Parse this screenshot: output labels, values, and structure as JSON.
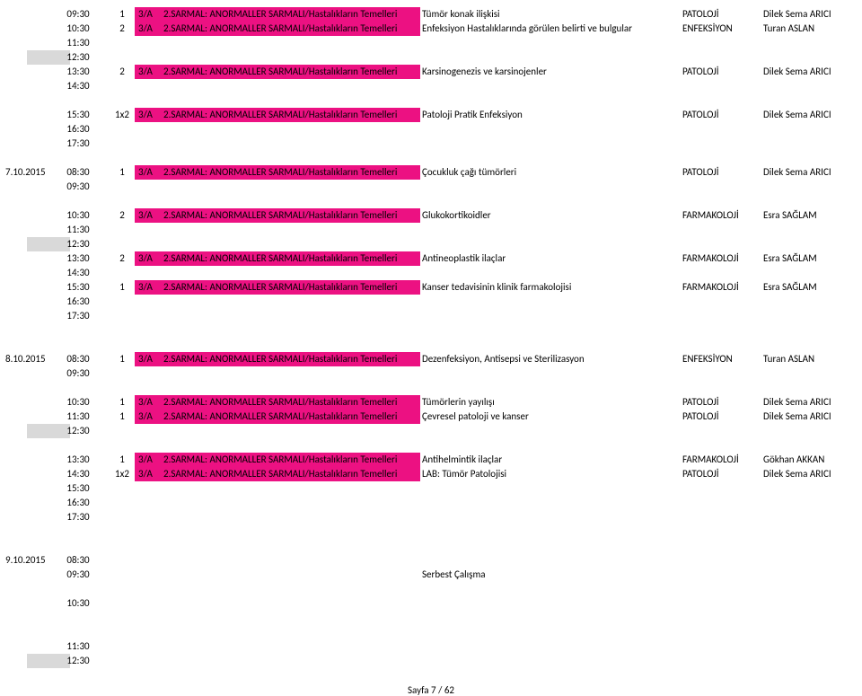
{
  "colors": {
    "pink": "#ec1182",
    "grey": "#d9d9d9",
    "text": "#000000",
    "background": "#ffffff"
  },
  "footer": "Sayfa 7 / 62",
  "rows": [
    {
      "time": "09:30",
      "count": "1",
      "code": "3/A",
      "course": "2.SARMAL: ANORMALLER SARMALI/Hastalıkların Temelleri",
      "topic": "Tümör konak ilişkisi",
      "dept": "PATOLOJİ",
      "inst": "Dilek Sema ARICI",
      "hl": "pink"
    },
    {
      "time": "10:30",
      "count": "2",
      "code": "3/A",
      "course": "2.SARMAL: ANORMALLER SARMALI/Hastalıkların Temelleri",
      "topic": "Enfeksiyon Hastalıklarında görülen belirti ve bulgular",
      "dept": "ENFEKSİYON",
      "inst": "Turan ASLAN",
      "hl": "pink"
    },
    {
      "time": "11:30"
    },
    {
      "time": "12:30",
      "grey": true
    },
    {
      "time": "13:30",
      "count": "2",
      "code": "3/A",
      "course": "2.SARMAL: ANORMALLER SARMALI/Hastalıkların Temelleri",
      "topic": "Karsinogenezis ve karsinojenler",
      "dept": "PATOLOJİ",
      "inst": "Dilek Sema ARICI",
      "hl": "pink"
    },
    {
      "time": "14:30"
    },
    {
      "blank": true
    },
    {
      "time": "15:30",
      "count": "1x2",
      "code": "3/A",
      "course": "2.SARMAL: ANORMALLER SARMALI/Hastalıkların Temelleri",
      "topic": "Patoloji Pratik Enfeksiyon",
      "dept": "PATOLOJİ",
      "inst": "Dilek Sema ARICI",
      "hl": "pink"
    },
    {
      "time": "16:30"
    },
    {
      "time": "17:30"
    },
    {
      "blank": true
    },
    {
      "date": "7.10.2015",
      "time": "08:30",
      "count": "1",
      "code": "3/A",
      "course": "2.SARMAL: ANORMALLER SARMALI/Hastalıkların Temelleri",
      "topic": "Çocukluk çağı tümörleri",
      "dept": "PATOLOJİ",
      "inst": "Dilek Sema ARICI",
      "hl": "pink"
    },
    {
      "time": "09:30"
    },
    {
      "blank": true
    },
    {
      "time": "10:30",
      "count": "2",
      "code": "3/A",
      "course": "2.SARMAL: ANORMALLER SARMALI/Hastalıkların Temelleri",
      "topic": "Glukokortikoidler",
      "dept": "FARMAKOLOJİ",
      "inst": "Esra SAĞLAM",
      "hl": "pink"
    },
    {
      "time": "11:30"
    },
    {
      "time": "12:30",
      "grey": true
    },
    {
      "time": "13:30",
      "count": "2",
      "code": "3/A",
      "course": "2.SARMAL: ANORMALLER SARMALI/Hastalıkların Temelleri",
      "topic": "Antineoplastik ilaçlar",
      "dept": "FARMAKOLOJİ",
      "inst": "Esra SAĞLAM",
      "hl": "pink"
    },
    {
      "time": "14:30"
    },
    {
      "time": "15:30",
      "count": "1",
      "code": "3/A",
      "course": "2.SARMAL: ANORMALLER SARMALI/Hastalıkların Temelleri",
      "topic": "Kanser tedavisinin klinik farmakolojisi",
      "dept": "FARMAKOLOJİ",
      "inst": "Esra SAĞLAM",
      "hl": "pink"
    },
    {
      "time": "16:30"
    },
    {
      "time": "17:30"
    },
    {
      "blank": true
    },
    {
      "blank": true
    },
    {
      "date": "8.10.2015",
      "time": "08:30",
      "count": "1",
      "code": "3/A",
      "course": "2.SARMAL: ANORMALLER SARMALI/Hastalıkların Temelleri",
      "topic": "Dezenfeksiyon, Antisepsi ve Sterilizasyon",
      "dept": "ENFEKSİYON",
      "inst": "Turan ASLAN",
      "hl": "pink"
    },
    {
      "time": "09:30"
    },
    {
      "blank": true
    },
    {
      "time": "10:30",
      "count": "1",
      "code": "3/A",
      "course": "2.SARMAL: ANORMALLER SARMALI/Hastalıkların Temelleri",
      "topic": "Tümörlerin yayılışı",
      "dept": "PATOLOJİ",
      "inst": "Dilek Sema ARICI",
      "hl": "pink"
    },
    {
      "time": "11:30",
      "count": "1",
      "code": "3/A",
      "course": "2.SARMAL: ANORMALLER SARMALI/Hastalıkların Temelleri",
      "topic": "Çevresel patoloji ve kanser",
      "dept": "PATOLOJİ",
      "inst": "Dilek Sema ARICI",
      "hl": "pink"
    },
    {
      "time": "12:30",
      "grey": true
    },
    {
      "blank": true
    },
    {
      "time": "13:30",
      "count": "1",
      "code": "3/A",
      "course": "2.SARMAL: ANORMALLER SARMALI/Hastalıkların Temelleri",
      "topic": "Antihelmintik ilaçlar",
      "dept": "FARMAKOLOJİ",
      "inst": "Gökhan AKKAN",
      "hl": "pink"
    },
    {
      "time": "14:30",
      "count": "1x2",
      "code": "3/A",
      "course": "2.SARMAL: ANORMALLER SARMALI/Hastalıkların Temelleri",
      "topic": "LAB: Tümör Patolojisi",
      "dept": "PATOLOJİ",
      "inst": "Dilek Sema ARICI",
      "hl": "pink"
    },
    {
      "time": "15:30"
    },
    {
      "time": "16:30"
    },
    {
      "time": "17:30"
    },
    {
      "blank": true
    },
    {
      "blank": true
    },
    {
      "date": "9.10.2015",
      "time": "08:30"
    },
    {
      "time": "09:30",
      "topic": "Serbest Çalışma"
    },
    {
      "blank": true
    },
    {
      "time": "10:30"
    },
    {
      "blank": true
    },
    {
      "blank": true
    },
    {
      "time": "11:30"
    },
    {
      "time": "12:30",
      "grey": true
    }
  ]
}
